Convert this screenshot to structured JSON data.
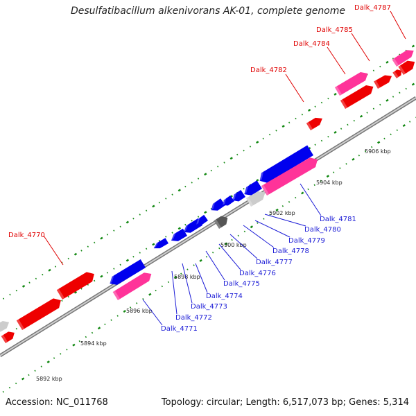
{
  "title": "Desulfatibacillum alkenivorans AK-01, complete genome",
  "footer": {
    "accession": "Accession: NC_011768",
    "meta": "Topology: circular; Length: 6,517,073 bp; Genes: 5,314"
  },
  "colors": {
    "forward_cds": "#ee0000",
    "reverse_cds": "#0000ee",
    "rna_forward": "#ff3399",
    "rna_other": "#cccccc",
    "dark_feature": "#555555",
    "backbone": "#888888",
    "ticks": "#118811"
  },
  "ticks": [
    "5892 kbp",
    "5894 kbp",
    "5896 kbp",
    "5898 kbp",
    "5900 kbp",
    "5902 kbp",
    "5904 kbp",
    "5906 kbp"
  ],
  "gene_labels_top": [
    "Dalk_4770",
    "Dalk_4782",
    "Dalk_4784",
    "Dalk_4785",
    "Dalk_4787"
  ],
  "gene_labels_bottom": [
    "Dalk_4771",
    "Dalk_4772",
    "Dalk_4773",
    "Dalk_4774",
    "Dalk_4775",
    "Dalk_4776",
    "Dalk_4777",
    "Dalk_4778",
    "Dalk_4779",
    "Dalk_4780",
    "Dalk_4781"
  ]
}
